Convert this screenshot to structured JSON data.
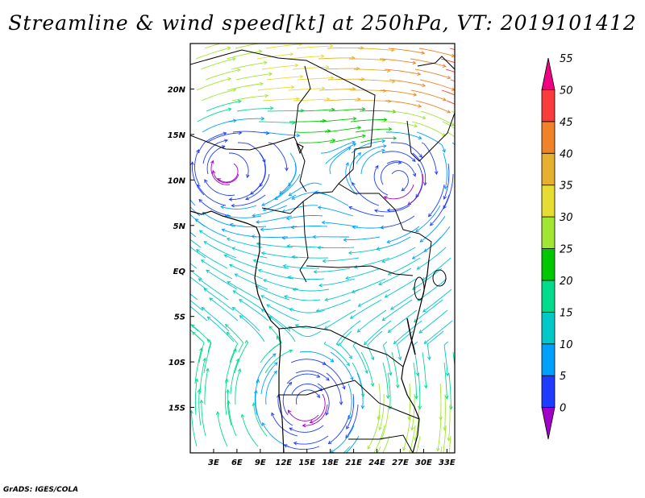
{
  "title": "Streamline & wind speed[kt] at 250hPa, VT: 2019101412",
  "footer": "GrADS: IGES/COLA",
  "map": {
    "lon_range": [
      0,
      34
    ],
    "lat_range": [
      -20,
      25
    ],
    "lat_ticks": [
      {
        "value": 20,
        "label": "20N"
      },
      {
        "value": 15,
        "label": "15N"
      },
      {
        "value": 10,
        "label": "10N"
      },
      {
        "value": 5,
        "label": "5N"
      },
      {
        "value": 0,
        "label": "EQ"
      },
      {
        "value": -5,
        "label": "5S"
      },
      {
        "value": -10,
        "label": "10S"
      },
      {
        "value": -15,
        "label": "15S"
      }
    ],
    "lon_ticks": [
      {
        "value": 3,
        "label": "3E"
      },
      {
        "value": 6,
        "label": "6E"
      },
      {
        "value": 9,
        "label": "9E"
      },
      {
        "value": 12,
        "label": "12E"
      },
      {
        "value": 15,
        "label": "15E"
      },
      {
        "value": 18,
        "label": "18E"
      },
      {
        "value": 21,
        "label": "21E"
      },
      {
        "value": 24,
        "label": "24E"
      },
      {
        "value": 27,
        "label": "27E"
      },
      {
        "value": 30,
        "label": "30E"
      },
      {
        "value": 33,
        "label": "33E"
      }
    ],
    "features": [
      {
        "name": "anticyclone-west-africa",
        "lon": 4.5,
        "lat": 11,
        "speed": 4
      },
      {
        "name": "anticyclone-central-africa",
        "lon": 27,
        "lat": 10,
        "speed": 3
      },
      {
        "name": "anticyclone-southern-africa",
        "lon": 15,
        "lat": -14.5,
        "speed": 2
      },
      {
        "name": "jet-northeast",
        "lon": 30,
        "lat": 21,
        "speed": 48
      }
    ]
  },
  "colorbar": {
    "levels": [
      {
        "value": 55,
        "label": "55"
      },
      {
        "value": 50,
        "label": "50"
      },
      {
        "value": 45,
        "label": "45"
      },
      {
        "value": 40,
        "label": "40"
      },
      {
        "value": 35,
        "label": "35"
      },
      {
        "value": 30,
        "label": "30"
      },
      {
        "value": 25,
        "label": "25"
      },
      {
        "value": 20,
        "label": "20"
      },
      {
        "value": 15,
        "label": "15"
      },
      {
        "value": 10,
        "label": "10"
      },
      {
        "value": 5,
        "label": "5"
      },
      {
        "value": 0,
        "label": "0"
      }
    ],
    "colors": [
      "#a000c8",
      "#1e3cff",
      "#00a0ff",
      "#00c8c8",
      "#00dc8c",
      "#00c800",
      "#a0e632",
      "#e6dc32",
      "#e6af2d",
      "#f08228",
      "#fa3c3c",
      "#f00082"
    ]
  }
}
